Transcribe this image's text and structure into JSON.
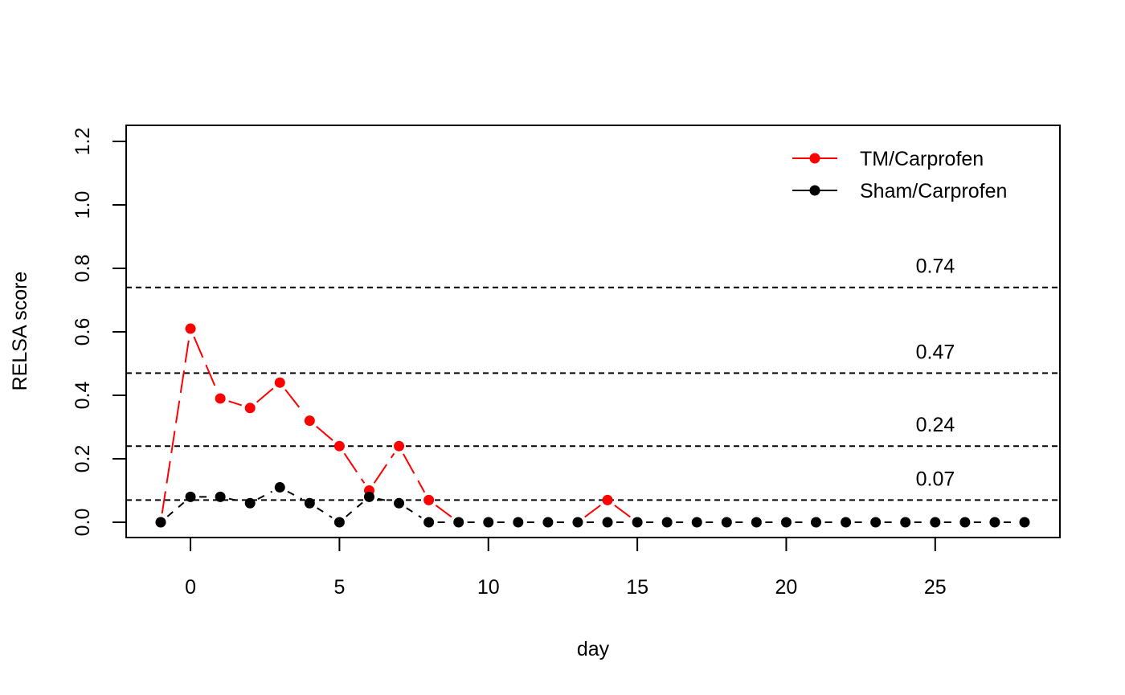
{
  "chart_data": {
    "type": "line",
    "title": "",
    "xlabel": "day",
    "ylabel": "RELSA score",
    "xlim": [
      -1,
      28
    ],
    "ylim": [
      0,
      1.2
    ],
    "x_ticks": [
      0,
      5,
      10,
      15,
      20,
      25
    ],
    "y_ticks": [
      "0.0",
      "0.2",
      "0.4",
      "0.6",
      "0.8",
      "1.0",
      "1.2"
    ],
    "grid": false,
    "legend_position": "top-right",
    "reference_lines": [
      {
        "value": 0.74,
        "label": "0.74",
        "style": "dashed"
      },
      {
        "value": 0.47,
        "label": "0.47",
        "style": "dashed"
      },
      {
        "value": 0.24,
        "label": "0.24",
        "style": "dashed"
      },
      {
        "value": 0.07,
        "label": "0.07",
        "style": "dashed"
      }
    ],
    "series": [
      {
        "name": "TM/Carprofen",
        "color": "#ff0000",
        "points": [
          [
            -1,
            0.0
          ],
          [
            0,
            0.61
          ],
          [
            1,
            0.39
          ],
          [
            2,
            0.36
          ],
          [
            3,
            0.44
          ],
          [
            4,
            0.32
          ],
          [
            5,
            0.24
          ],
          [
            6,
            0.1
          ],
          [
            7,
            0.24
          ],
          [
            8,
            0.07
          ],
          [
            14,
            0.07
          ]
        ]
      },
      {
        "name": "Sham/Carprofen",
        "color": "#000000",
        "points": [
          [
            -1,
            0.0
          ],
          [
            0,
            0.08
          ],
          [
            1,
            0.08
          ],
          [
            2,
            0.06
          ],
          [
            3,
            0.11
          ],
          [
            4,
            0.06
          ],
          [
            5,
            0.0
          ],
          [
            6,
            0.08
          ],
          [
            7,
            0.06
          ],
          [
            8,
            0.0
          ],
          [
            9,
            0.0
          ],
          [
            10,
            0.0
          ],
          [
            11,
            0.0
          ],
          [
            12,
            0.0
          ],
          [
            13,
            0.0
          ],
          [
            14,
            0.0
          ],
          [
            15,
            0.0
          ],
          [
            16,
            0.0
          ],
          [
            17,
            0.0
          ],
          [
            18,
            0.0
          ],
          [
            19,
            0.0
          ],
          [
            20,
            0.0
          ],
          [
            21,
            0.0
          ],
          [
            22,
            0.0
          ],
          [
            23,
            0.0
          ],
          [
            24,
            0.0
          ],
          [
            25,
            0.0
          ],
          [
            26,
            0.0
          ],
          [
            27,
            0.0
          ],
          [
            28,
            0.0
          ]
        ]
      }
    ]
  }
}
